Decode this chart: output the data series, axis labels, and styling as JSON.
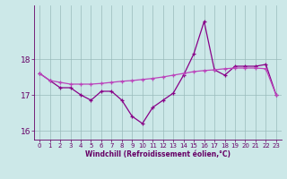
{
  "hours": [
    0,
    1,
    2,
    3,
    4,
    5,
    6,
    7,
    8,
    9,
    10,
    11,
    12,
    13,
    14,
    15,
    16,
    17,
    18,
    19,
    20,
    21,
    22,
    23
  ],
  "line1": [
    17.6,
    17.4,
    17.2,
    17.2,
    17.0,
    16.85,
    17.1,
    17.1,
    16.85,
    16.4,
    16.2,
    16.65,
    16.85,
    17.05,
    17.55,
    18.15,
    19.05,
    17.7,
    17.55,
    17.8,
    17.8,
    17.8,
    17.85,
    17.0
  ],
  "line2": [
    17.6,
    17.4,
    17.35,
    17.3,
    17.3,
    17.3,
    17.32,
    17.35,
    17.38,
    17.4,
    17.43,
    17.46,
    17.5,
    17.55,
    17.6,
    17.65,
    17.68,
    17.7,
    17.73,
    17.75,
    17.75,
    17.75,
    17.73,
    17.0
  ],
  "line1_color": "#880088",
  "line2_color": "#bb44bb",
  "bg_color": "#cce8e8",
  "grid_color": "#99bbbb",
  "xlabel": "Windchill (Refroidissement éolien,°C)",
  "ylim": [
    15.75,
    19.5
  ],
  "yticks": [
    16,
    17,
    18
  ],
  "xticks": [
    0,
    1,
    2,
    3,
    4,
    5,
    6,
    7,
    8,
    9,
    10,
    11,
    12,
    13,
    14,
    15,
    16,
    17,
    18,
    19,
    20,
    21,
    22,
    23
  ],
  "marker": "+",
  "markersize": 3.5,
  "linewidth": 0.9,
  "font_color": "#660066",
  "tick_fontsize": 5,
  "xlabel_fontsize": 5.5
}
